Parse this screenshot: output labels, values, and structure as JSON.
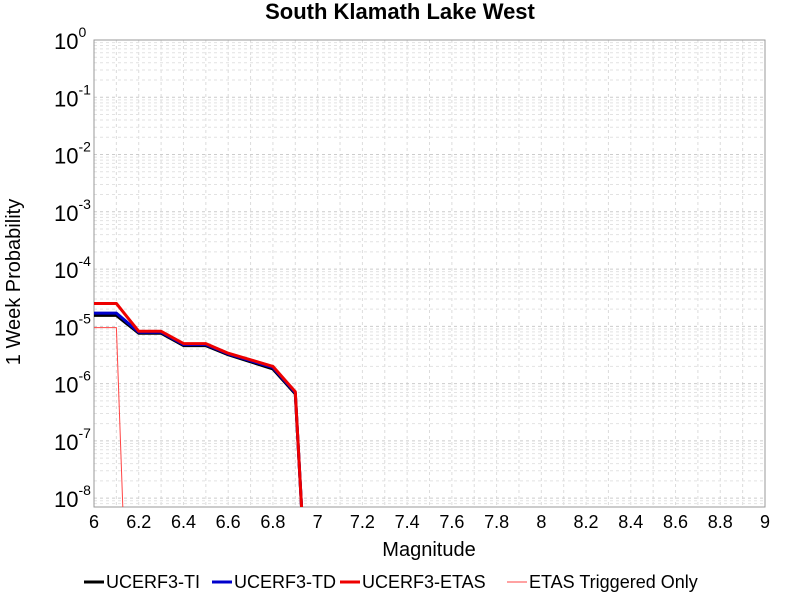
{
  "chart_data": {
    "type": "line",
    "title": "South Klamath Lake West",
    "xlabel": "Magnitude",
    "ylabel": "1 Week Probability",
    "xlim": [
      6,
      9
    ],
    "ylim": [
      7e-09,
      1
    ],
    "yscale": "log",
    "grid": true,
    "legend_position": "bottom",
    "x_ticks": [
      "6",
      "6.2",
      "6.4",
      "6.6",
      "6.8",
      "7",
      "7.2",
      "7.4",
      "7.6",
      "7.8",
      "8",
      "8.2",
      "8.4",
      "8.6",
      "8.8",
      "9"
    ],
    "y_ticks": [
      {
        "base": "10",
        "exp": "0"
      },
      {
        "base": "10",
        "exp": "-1"
      },
      {
        "base": "10",
        "exp": "-2"
      },
      {
        "base": "10",
        "exp": "-3"
      },
      {
        "base": "10",
        "exp": "-4"
      },
      {
        "base": "10",
        "exp": "-5"
      },
      {
        "base": "10",
        "exp": "-6"
      },
      {
        "base": "10",
        "exp": "-7"
      },
      {
        "base": "10",
        "exp": "-8"
      }
    ],
    "series": [
      {
        "name": "UCERF3-TI",
        "color": "#000000",
        "width": 3,
        "x": [
          6.0,
          6.1,
          6.2,
          6.3,
          6.4,
          6.5,
          6.6,
          6.7,
          6.8,
          6.9,
          6.93
        ],
        "y": [
          1.55e-05,
          1.55e-05,
          7.6e-06,
          7.6e-06,
          4.6e-06,
          4.6e-06,
          3.2e-06,
          2.4e-06,
          1.8e-06,
          6.6e-07,
          5e-09
        ]
      },
      {
        "name": "UCERF3-TD",
        "color": "#0000cc",
        "width": 3,
        "x": [
          6.0,
          6.1,
          6.2,
          6.3,
          6.4,
          6.5,
          6.6,
          6.7,
          6.8,
          6.9,
          6.93
        ],
        "y": [
          1.7e-05,
          1.7e-05,
          7.9e-06,
          7.9e-06,
          4.8e-06,
          4.8e-06,
          3.3e-06,
          2.5e-06,
          1.9e-06,
          6.9e-07,
          5e-09
        ]
      },
      {
        "name": "UCERF3-ETAS",
        "color": "#ee0000",
        "width": 3,
        "x": [
          6.0,
          6.1,
          6.2,
          6.3,
          6.4,
          6.5,
          6.6,
          6.7,
          6.8,
          6.9,
          6.93
        ],
        "y": [
          2.5e-05,
          2.5e-05,
          8.2e-06,
          8.2e-06,
          5e-06,
          5e-06,
          3.4e-06,
          2.6e-06,
          2e-06,
          7.2e-07,
          5e-09
        ]
      },
      {
        "name": "ETAS Triggered Only",
        "color": "#ff4444",
        "width": 1,
        "x": [
          6.0,
          6.1,
          6.13
        ],
        "y": [
          9.5e-06,
          9.5e-06,
          5e-09
        ]
      }
    ]
  }
}
